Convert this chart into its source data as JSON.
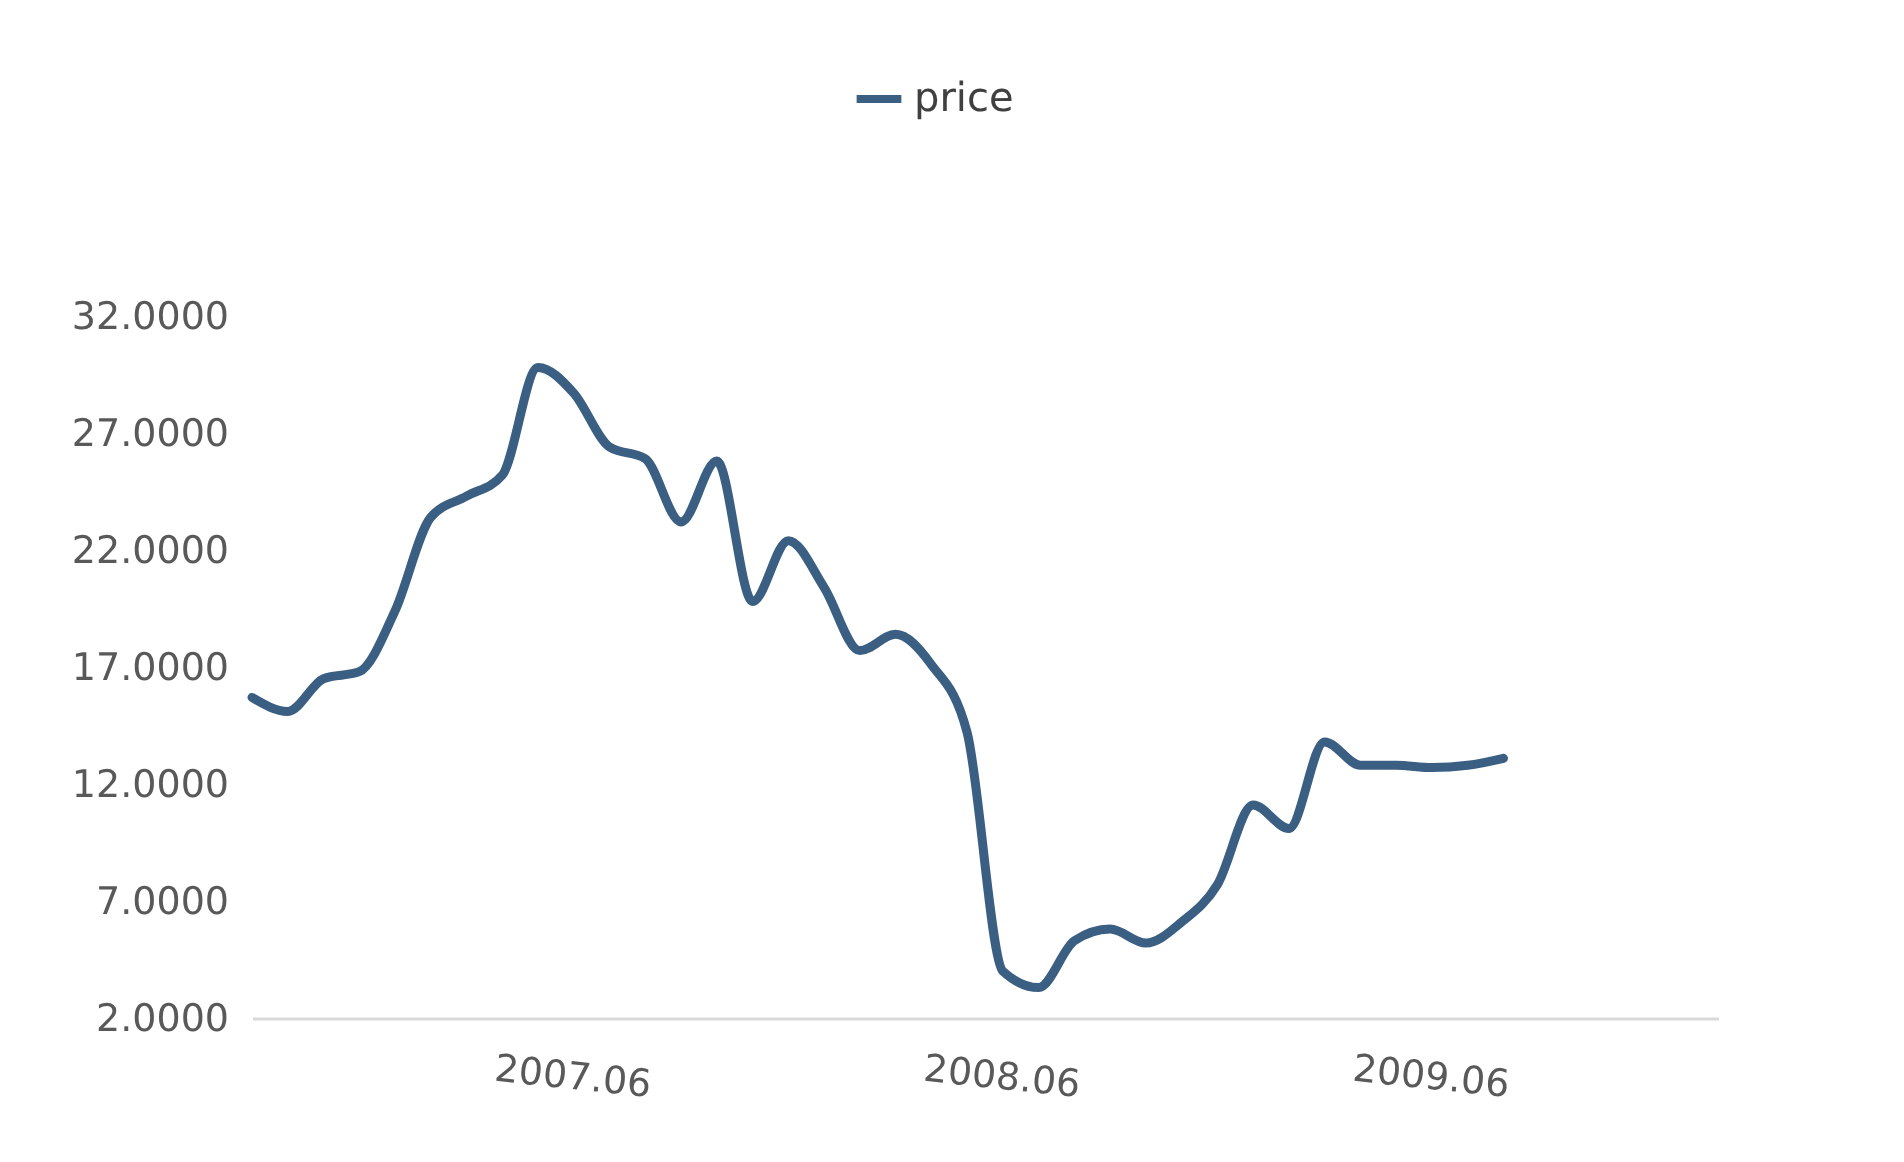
{
  "chart_data": {
    "type": "line",
    "categories": [
      null,
      null,
      null,
      null,
      null,
      null,
      null,
      null,
      null,
      "2007.06",
      null,
      null,
      null,
      null,
      null,
      null,
      null,
      null,
      null,
      null,
      null,
      "2008.06",
      null,
      null,
      null,
      null,
      null,
      null,
      null,
      null,
      null,
      null,
      null,
      "2009.06",
      null,
      null,
      null,
      null,
      null,
      null,
      null,
      null
    ],
    "series": [
      {
        "name": "price",
        "color": "#3a5f83",
        "values": [
          15.7,
          15.1,
          16.5,
          16.8,
          19.4,
          23.4,
          24.3,
          25.2,
          29.8,
          28.7,
          26.4,
          25.9,
          23.2,
          25.8,
          19.8,
          22.4,
          20.4,
          17.7,
          18.4,
          17.1,
          14.2,
          4.0,
          3.3,
          5.3,
          5.8,
          5.2,
          6.1,
          7.7,
          11.1,
          10.1,
          13.8,
          12.8,
          12.8,
          12.7,
          12.8,
          13.1,
          null,
          null,
          null,
          null,
          null,
          null
        ]
      }
    ],
    "ylim": [
      2,
      32
    ],
    "yticks": [
      {
        "value": 2,
        "label": "2.0000"
      },
      {
        "value": 7,
        "label": "7.0000"
      },
      {
        "value": 12,
        "label": "12.0000"
      },
      {
        "value": 17,
        "label": "17.0000"
      },
      {
        "value": 22,
        "label": "22.0000"
      },
      {
        "value": 27,
        "label": "27.0000"
      },
      {
        "value": 32,
        "label": "32.0000"
      }
    ],
    "legend": "top",
    "grid": false,
    "line_style": "solid",
    "marker": "none"
  }
}
